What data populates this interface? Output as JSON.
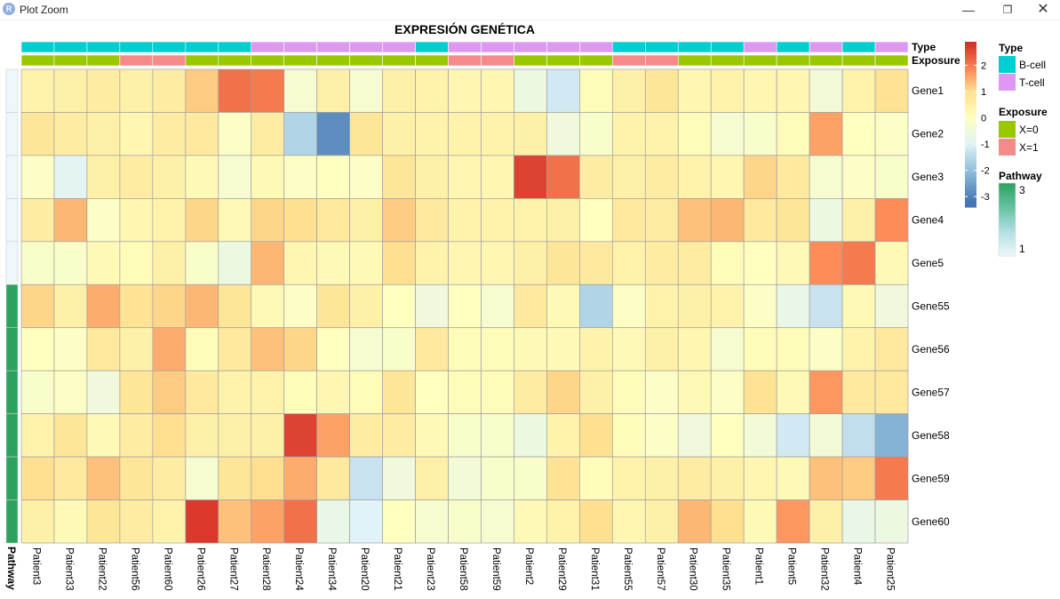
{
  "window": {
    "title": "Plot Zoom",
    "app_icon": "R",
    "minimize_icon": "—",
    "maximize_icon": "❐",
    "close_icon": "✕"
  },
  "chart_data": {
    "type": "heatmap",
    "title": "EXPRESIÓN GENÉTICA",
    "columns": [
      "Patient3",
      "Patient33",
      "Patient22",
      "Patient56",
      "Patient60",
      "Patient26",
      "Patient27",
      "Patient28",
      "Patient24",
      "Patient34",
      "Patient20",
      "Patient21",
      "Patient23",
      "Patient58",
      "Patient59",
      "Patient2",
      "Patient29",
      "Patient31",
      "Patient55",
      "Patient57",
      "Patient30",
      "Patient35",
      "Patient1",
      "Patient5",
      "Patient32",
      "Patient4",
      "Patient25"
    ],
    "rows": [
      "Gene1",
      "Gene2",
      "Gene3",
      "Gene4",
      "Gene5",
      "Gene55",
      "Gene56",
      "Gene57",
      "Gene58",
      "Gene59",
      "Gene60"
    ],
    "values": [
      [
        0.4,
        0.5,
        0.6,
        0.5,
        0.6,
        1.2,
        2.1,
        2.0,
        -0.3,
        0.5,
        -0.3,
        0.5,
        0.4,
        0.3,
        0.3,
        -0.6,
        -1.2,
        0.1,
        0.5,
        0.8,
        0.3,
        0.4,
        0.3,
        0.3,
        -0.4,
        0.4,
        0.9
      ],
      [
        0.8,
        0.6,
        0.5,
        0.3,
        0.6,
        0.7,
        -0.1,
        0.6,
        -1.6,
        -2.8,
        0.8,
        0.5,
        0.4,
        0.4,
        0.4,
        0.5,
        -0.5,
        -0.2,
        0.4,
        0.4,
        0.1,
        -0.3,
        -0.2,
        0.1,
        1.6,
        0.0,
        -0.1
      ],
      [
        -0.1,
        -0.9,
        0.5,
        0.6,
        0.5,
        0.2,
        -0.3,
        0.2,
        -0.1,
        0.0,
        -0.1,
        0.8,
        0.5,
        0.3,
        0.3,
        2.6,
        2.1,
        0.6,
        0.5,
        0.6,
        0.4,
        0.3,
        1.1,
        0.7,
        -0.3,
        -0.1,
        -0.2
      ],
      [
        0.6,
        1.4,
        -0.1,
        0.3,
        0.4,
        1.1,
        0.2,
        1.1,
        1.0,
        0.7,
        0.5,
        1.2,
        0.7,
        0.4,
        0.4,
        0.4,
        0.5,
        0.0,
        0.7,
        0.6,
        1.3,
        1.4,
        0.7,
        0.8,
        -0.6,
        0.5,
        1.8
      ],
      [
        -0.2,
        -0.2,
        0.2,
        0.1,
        0.5,
        -0.2,
        -0.6,
        1.4,
        0.3,
        0.2,
        0.2,
        1.0,
        0.4,
        0.3,
        0.3,
        0.5,
        0.8,
        0.7,
        0.4,
        0.6,
        0.6,
        0.1,
        0.0,
        0.2,
        1.8,
        2.0,
        0.2
      ],
      [
        1.1,
        0.5,
        1.5,
        0.9,
        1.1,
        1.4,
        0.8,
        0.2,
        -0.1,
        0.8,
        0.5,
        0.0,
        -0.5,
        0.0,
        -0.3,
        0.7,
        0.2,
        -1.6,
        -0.1,
        0.4,
        0.5,
        0.4,
        -0.1,
        -0.7,
        -1.3,
        0.2,
        -0.5
      ],
      [
        0.0,
        -0.1,
        0.7,
        0.5,
        1.5,
        0.1,
        0.7,
        1.3,
        1.1,
        0.0,
        -0.3,
        -0.2,
        0.7,
        0.1,
        0.1,
        0.2,
        0.2,
        0.4,
        0.2,
        0.5,
        0.3,
        -0.3,
        0.1,
        0.1,
        -0.1,
        0.4,
        0.7
      ],
      [
        -0.2,
        -0.1,
        -0.5,
        0.8,
        1.2,
        0.7,
        0.4,
        0.4,
        0.1,
        0.3,
        0.1,
        0.8,
        0.0,
        0.1,
        0.1,
        0.6,
        1.1,
        0.5,
        0.1,
        -0.1,
        0.2,
        -0.1,
        0.9,
        0.2,
        1.7,
        0.7,
        0.7
      ],
      [
        0.4,
        0.8,
        0.2,
        0.6,
        1.0,
        0.5,
        0.5,
        0.5,
        2.6,
        1.6,
        0.6,
        0.6,
        0.2,
        -0.2,
        -0.2,
        -0.6,
        0.4,
        1.0,
        0.1,
        -0.1,
        -0.5,
        0.0,
        -0.4,
        -1.2,
        -0.4,
        -1.4,
        -2.2
      ],
      [
        1.0,
        0.7,
        1.3,
        0.8,
        0.6,
        -0.3,
        0.8,
        1.0,
        1.5,
        0.7,
        -1.3,
        -0.5,
        0.5,
        -0.4,
        -0.2,
        -0.2,
        0.9,
        0.1,
        0.4,
        0.5,
        0.6,
        0.5,
        0.3,
        0.2,
        1.3,
        1.2,
        2.0
      ],
      [
        0.5,
        0.2,
        0.8,
        0.6,
        0.4,
        2.7,
        1.3,
        1.6,
        2.1,
        -0.7,
        -1.0,
        0.0,
        -0.3,
        -0.2,
        -0.3,
        0.2,
        0.4,
        1.0,
        0.3,
        0.5,
        1.4,
        1.0,
        0.2,
        1.7,
        0.5,
        -0.7,
        -0.6
      ]
    ],
    "color_scale": {
      "breaks": [
        2,
        1,
        0,
        -1,
        -2,
        -3
      ],
      "labels": [
        "2",
        "1",
        "0",
        "-1",
        "-2",
        "-3"
      ],
      "min": -3.4,
      "max": 2.9,
      "stops": [
        {
          "v": -3.2,
          "color": "#4575b4"
        },
        {
          "v": -2.0,
          "color": "#91bfdb"
        },
        {
          "v": -1.0,
          "color": "#e0f3f8"
        },
        {
          "v": 0.0,
          "color": "#ffffbf"
        },
        {
          "v": 1.0,
          "color": "#fee090"
        },
        {
          "v": 1.8,
          "color": "#fc8d59"
        },
        {
          "v": 2.8,
          "color": "#d73027"
        }
      ]
    },
    "column_annotations": [
      {
        "name": "Type",
        "values": [
          "B-cell",
          "B-cell",
          "B-cell",
          "B-cell",
          "B-cell",
          "B-cell",
          "B-cell",
          "T-cell",
          "T-cell",
          "T-cell",
          "T-cell",
          "T-cell",
          "B-cell",
          "T-cell",
          "T-cell",
          "T-cell",
          "T-cell",
          "T-cell",
          "B-cell",
          "B-cell",
          "B-cell",
          "B-cell",
          "T-cell",
          "B-cell",
          "T-cell",
          "B-cell",
          "T-cell"
        ]
      },
      {
        "name": "Exposure",
        "values": [
          "X=0",
          "X=0",
          "X=0",
          "X=1",
          "X=1",
          "X=0",
          "X=0",
          "X=0",
          "X=0",
          "X=0",
          "X=0",
          "X=0",
          "X=0",
          "X=1",
          "X=1",
          "X=0",
          "X=0",
          "X=0",
          "X=1",
          "X=1",
          "X=0",
          "X=0",
          "X=0",
          "X=0",
          "X=0",
          "X=0",
          "X=0"
        ]
      }
    ],
    "row_annotation": {
      "name": "Pathway",
      "values": [
        1,
        1,
        1,
        1,
        1,
        3,
        3,
        3,
        3,
        3,
        3
      ],
      "stops": [
        {
          "v": 1,
          "color": "#eef7fa"
        },
        {
          "v": 1.67,
          "color": "#b2e0e2"
        },
        {
          "v": 2.33,
          "color": "#66c2a4"
        },
        {
          "v": 3,
          "color": "#2ca25f"
        }
      ]
    },
    "legends": [
      {
        "title": "Type",
        "items": [
          {
            "label": "B-cell",
            "color": "#00ced1"
          },
          {
            "label": "T-cell",
            "color": "#dd99f2"
          }
        ]
      },
      {
        "title": "Exposure",
        "items": [
          {
            "label": "X=0",
            "color": "#99c800"
          },
          {
            "label": "X=1",
            "color": "#f58a8a"
          }
        ]
      },
      {
        "title": "Pathway",
        "labels": [
          "3",
          "1"
        ]
      }
    ]
  }
}
